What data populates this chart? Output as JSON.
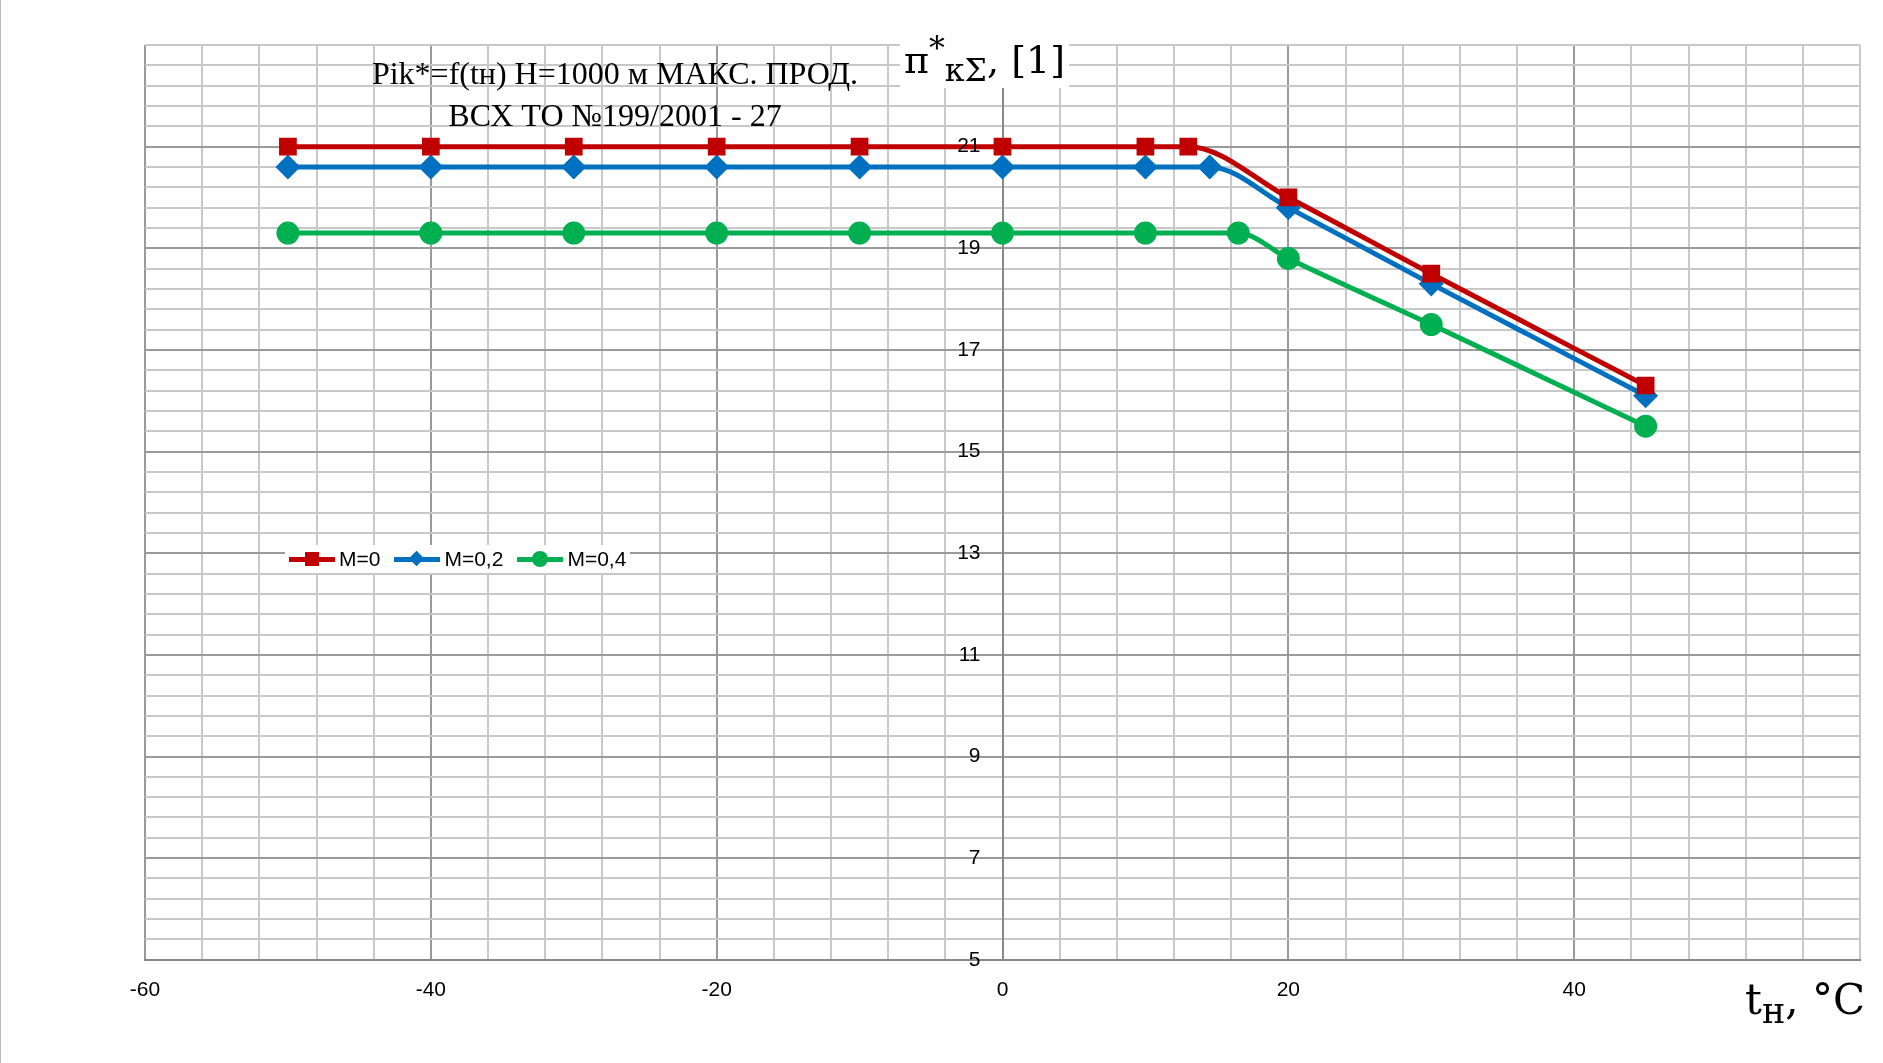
{
  "chart_data": {
    "type": "line",
    "title": "Pik*=f(tн) H=1000 м МАКС. ПРОД.",
    "subtitle": "ВСХ ТО №199/2001 - 27",
    "xlabel": "t$_{н}$, °C",
    "ylabel": "π$^{*}$$_{кΣ}$, [1]",
    "xlim": [
      -60,
      60
    ],
    "xticks": [
      -60,
      {
        "value": -56,
        "label": null
      },
      {
        "value": -52,
        "label": null
      },
      {
        "value": -48,
        "label": null
      },
      {
        "value": -44,
        "label": null
      },
      -40,
      {
        "value": -36,
        "label": null
      },
      {
        "value": -32,
        "label": null
      },
      {
        "value": -28,
        "label": null
      },
      {
        "value": -24,
        "label": null
      },
      -20,
      {
        "value": -16,
        "label": null
      },
      {
        "value": -12,
        "label": null
      },
      {
        "value": -8,
        "label": null
      },
      {
        "value": -4,
        "label": null
      },
      0,
      {
        "value": 4,
        "label": null
      },
      {
        "value": 8,
        "label": null
      },
      {
        "value": 12,
        "label": null
      },
      {
        "value": 16,
        "label": null
      },
      20,
      {
        "value": 24,
        "label": null
      },
      {
        "value": 28,
        "label": null
      },
      {
        "value": 32,
        "label": null
      },
      {
        "value": 36,
        "label": null
      },
      40,
      {
        "value": 44,
        "label": null
      },
      {
        "value": 48,
        "label": null
      },
      {
        "value": 52,
        "label": null
      },
      {
        "value": 56,
        "label": null
      },
      {
        "value": 60,
        "label": null
      }
    ],
    "ylim": [
      5,
      23
    ],
    "yticks": [
      5,
      {
        "value": 5.4,
        "label": null
      },
      {
        "value": 5.8,
        "label": null
      },
      {
        "value": 6.2,
        "label": null
      },
      {
        "value": 6.6,
        "label": null
      },
      7,
      {
        "value": 7.4,
        "label": null
      },
      {
        "value": 7.8,
        "label": null
      },
      {
        "value": 8.2,
        "label": null
      },
      {
        "value": 8.6,
        "label": null
      },
      9,
      {
        "value": 9.4,
        "label": null
      },
      {
        "value": 9.8,
        "label": null
      },
      {
        "value": 10.2,
        "label": null
      },
      {
        "value": 10.6,
        "label": null
      },
      11,
      {
        "value": 11.4,
        "label": null
      },
      {
        "value": 11.8,
        "label": null
      },
      {
        "value": 12.2,
        "label": null
      },
      {
        "value": 12.6,
        "label": null
      },
      13,
      {
        "value": 13.4,
        "label": null
      },
      {
        "value": 13.8,
        "label": null
      },
      {
        "value": 14.2,
        "label": null
      },
      {
        "value": 14.6,
        "label": null
      },
      15,
      {
        "value": 15.4,
        "label": null
      },
      {
        "value": 15.8,
        "label": null
      },
      {
        "value": 16.2,
        "label": null
      },
      {
        "value": 16.6,
        "label": null
      },
      17,
      {
        "value": 17.4,
        "label": null
      },
      {
        "value": 17.8,
        "label": null
      },
      {
        "value": 18.2,
        "label": null
      },
      {
        "value": 18.6,
        "label": null
      },
      19,
      {
        "value": 19.4,
        "label": null
      },
      {
        "value": 19.8,
        "label": null
      },
      {
        "value": 20.2,
        "label": null
      },
      {
        "value": 20.6,
        "label": null
      },
      21,
      {
        "value": 21.4,
        "label": null
      },
      {
        "value": 21.8,
        "label": null
      },
      {
        "value": 22.2,
        "label": null
      },
      {
        "value": 22.6,
        "label": null
      },
      {
        "value": 23,
        "label": null
      }
    ],
    "grid": true,
    "legend": "left",
    "series": [
      {
        "name": "M=0",
        "color": "#c00000",
        "marker": "square",
        "x": [
          -50,
          -40,
          -30,
          -20,
          -10,
          0,
          10,
          13,
          20,
          30,
          45
        ],
        "values": [
          21,
          21,
          21,
          21,
          21,
          21,
          21,
          21,
          20,
          18.5,
          16.3
        ]
      },
      {
        "name": "M=0,2",
        "color": "#0070c0",
        "marker": "diamond",
        "x": [
          -50,
          -40,
          -30,
          -20,
          -10,
          0,
          10,
          14.5,
          20,
          30,
          45
        ],
        "values": [
          20.6,
          20.6,
          20.6,
          20.6,
          20.6,
          20.6,
          20.6,
          20.6,
          19.8,
          18.3,
          16.1
        ]
      },
      {
        "name": "M=0,4",
        "color": "#00b050",
        "marker": "circle",
        "x": [
          -50,
          -40,
          -30,
          -20,
          -10,
          0,
          10,
          16.5,
          20,
          30,
          45
        ],
        "values": [
          19.3,
          19.3,
          19.3,
          19.3,
          19.3,
          19.3,
          19.3,
          19.3,
          18.8,
          17.5,
          15.5
        ]
      }
    ]
  }
}
